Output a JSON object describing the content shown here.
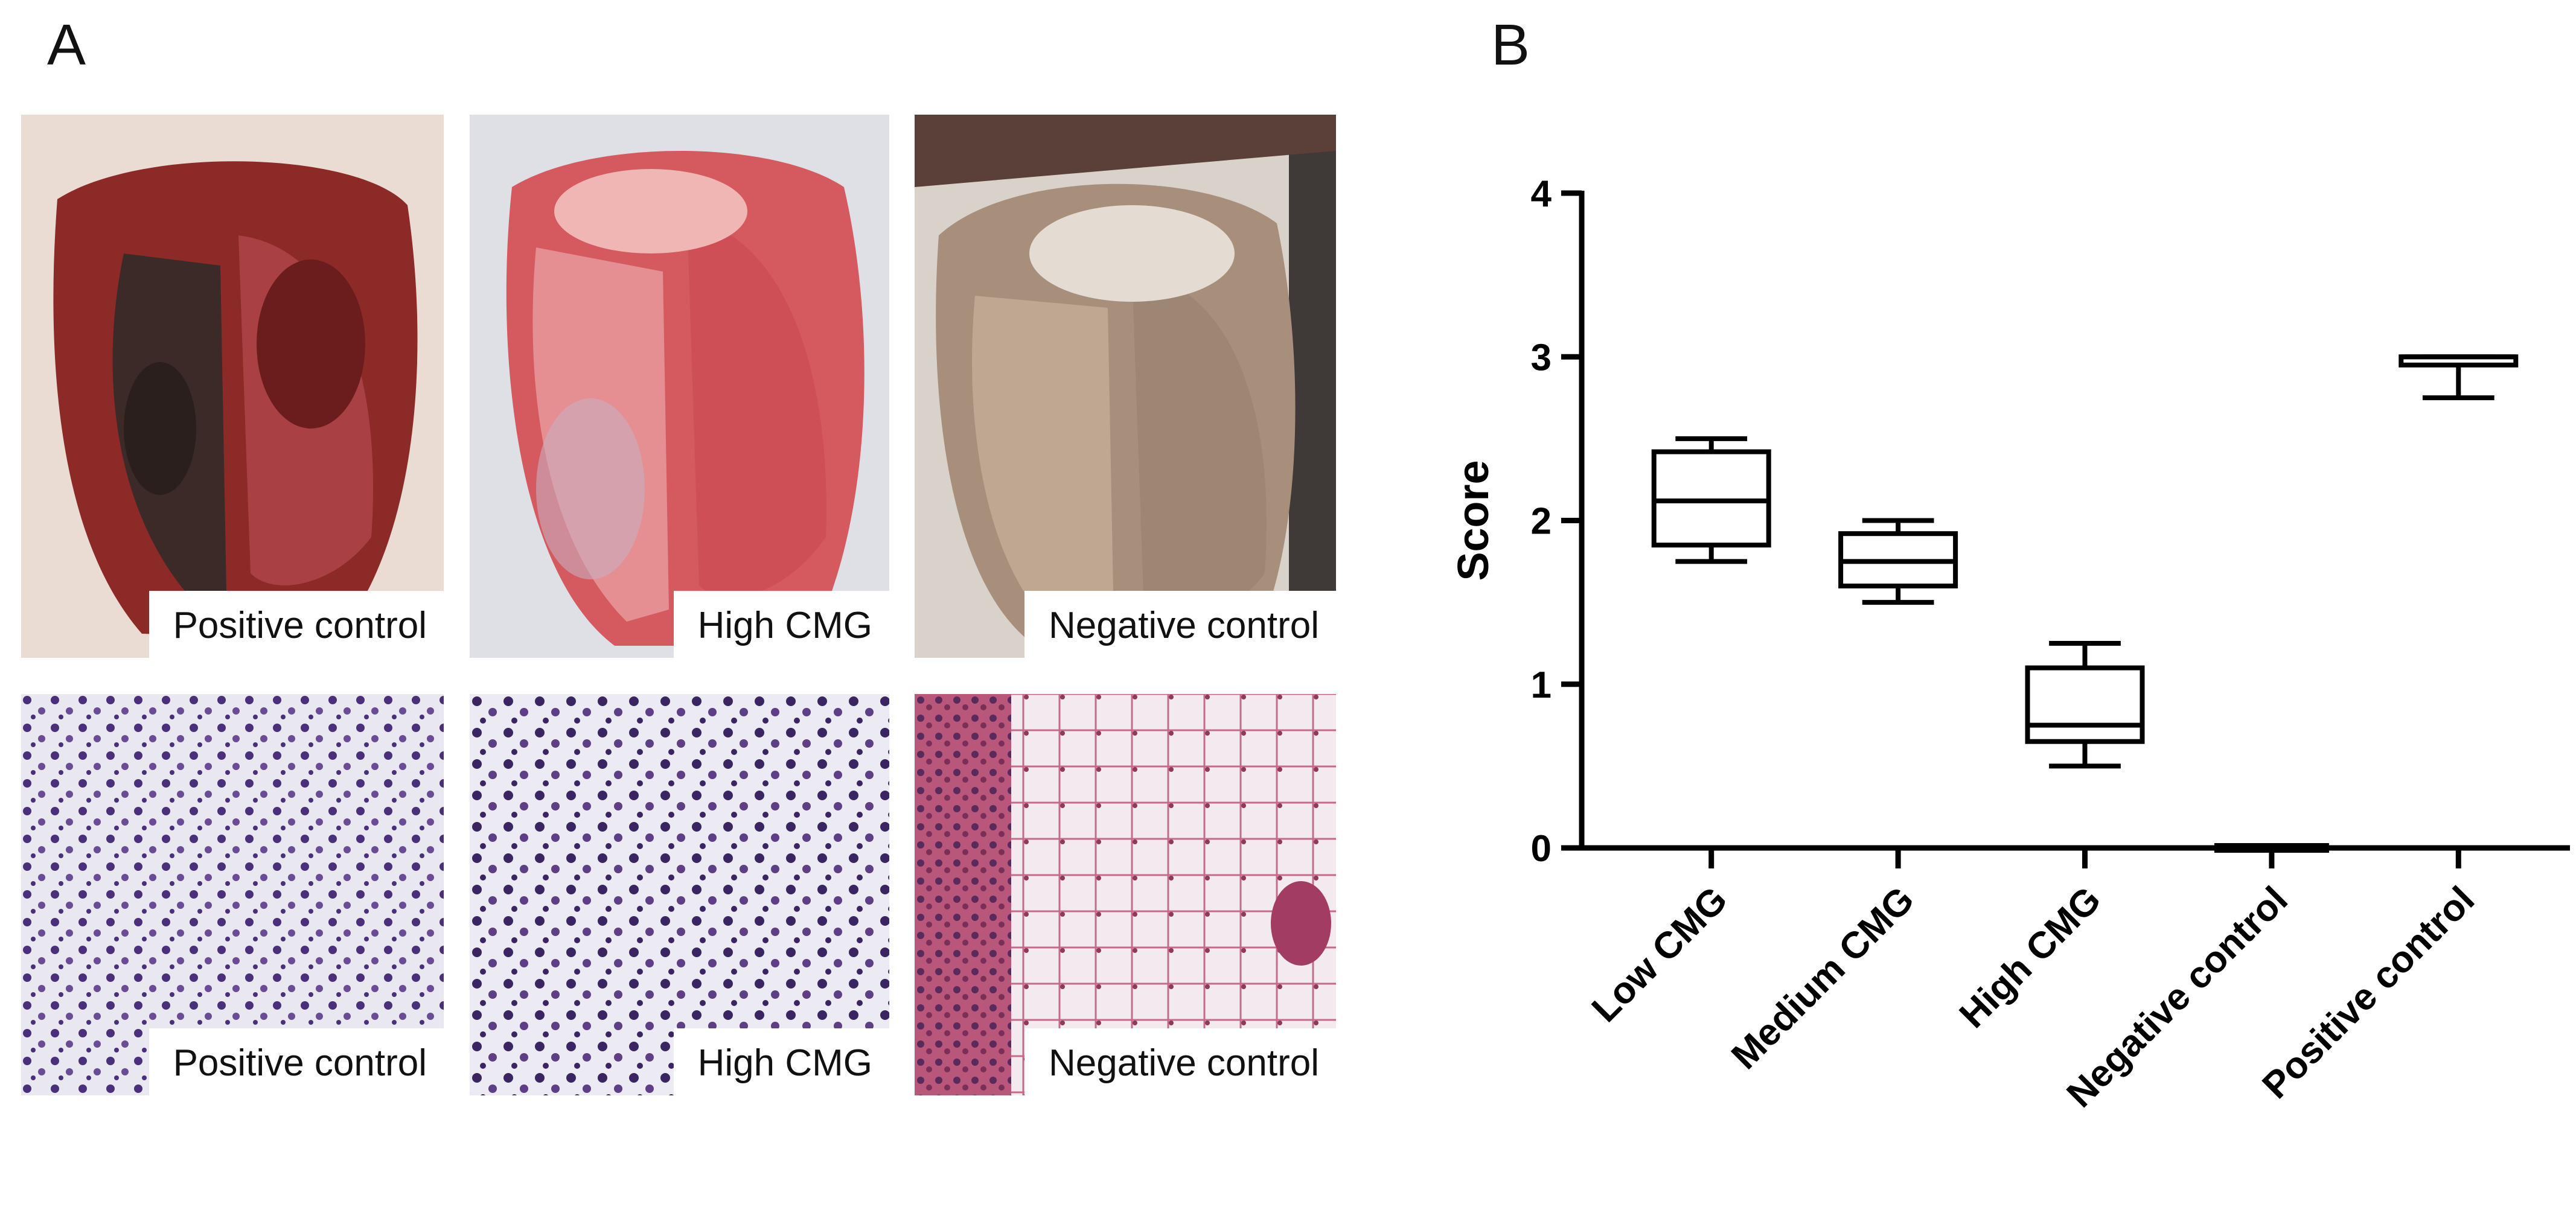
{
  "panels": {
    "a": "A",
    "b": "B"
  },
  "gross_photos": [
    {
      "caption": "Positive control",
      "palette": [
        "#7a1f1e",
        "#3c2b28",
        "#b5575a",
        "#e9d4cc"
      ]
    },
    {
      "caption": "High CMG",
      "palette": [
        "#c74a50",
        "#e27f83",
        "#f3c6c5",
        "#d9dce3"
      ]
    },
    {
      "caption": "Negative control",
      "palette": [
        "#a18a78",
        "#c2ad98",
        "#7b6b60",
        "#d7d1c9"
      ]
    }
  ],
  "histology_photos": [
    {
      "caption": "Positive control",
      "palette": [
        "#4a2f7a",
        "#6a4b95",
        "#e9e8f0",
        "#c8c4dc"
      ]
    },
    {
      "caption": "High CMG",
      "palette": [
        "#3b2462",
        "#5e3e86",
        "#eceaf2",
        "#bfb9d6"
      ]
    },
    {
      "caption": "Negative control",
      "palette": [
        "#a33c63",
        "#c56a8a",
        "#f3eaf0",
        "#8e3a5a"
      ]
    }
  ],
  "chart_data": {
    "type": "box",
    "ylabel": "Score",
    "ylim": [
      0,
      4
    ],
    "yticks": [
      0,
      1,
      2,
      3,
      4
    ],
    "categories": [
      "Low CMG",
      "Medium CMG",
      "High CMG",
      "Negative control",
      "Positive control"
    ],
    "boxes": [
      {
        "min": 1.75,
        "q1": 1.85,
        "median": 2.12,
        "q3": 2.42,
        "max": 2.5
      },
      {
        "min": 1.5,
        "q1": 1.6,
        "median": 1.75,
        "q3": 1.92,
        "max": 2.0
      },
      {
        "min": 0.5,
        "q1": 0.65,
        "median": 0.75,
        "q3": 1.1,
        "max": 1.25
      },
      {
        "min": 0.0,
        "q1": 0.0,
        "median": 0.0,
        "q3": 0.0,
        "max": 0.0
      },
      {
        "min": 2.75,
        "q1": 2.95,
        "median": 3.0,
        "q3": 3.0,
        "max": 3.0
      }
    ]
  }
}
